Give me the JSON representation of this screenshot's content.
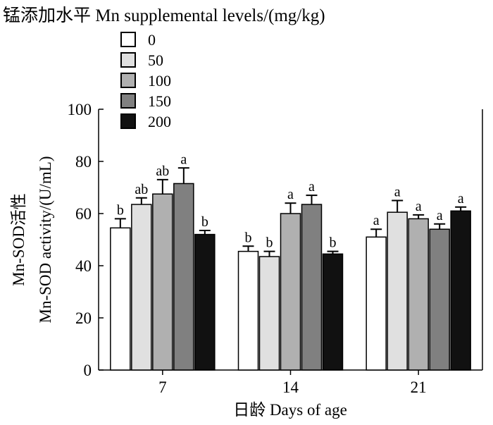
{
  "chart_data": {
    "type": "bar",
    "legend_title": "锰添加水平 Mn supplemental levels/(mg/kg)",
    "legend_position": "top-left",
    "categories": [
      "7",
      "14",
      "21"
    ],
    "xlabel": "日龄  Days of age",
    "ylabel_cn": "Mn-SOD活性",
    "ylabel_en": "Mn-SOD activity/(U/mL)",
    "ylim": [
      0,
      100
    ],
    "yticks": [
      0,
      20,
      40,
      60,
      80,
      100
    ],
    "grid": false,
    "series": [
      {
        "name": "0",
        "color": "#ffffff",
        "values": [
          54.5,
          45.5,
          51.0
        ],
        "errors": [
          3.5,
          2.0,
          3.0
        ],
        "labels": [
          "b",
          "b",
          "a"
        ]
      },
      {
        "name": "50",
        "color": "#e0e0e0",
        "values": [
          63.5,
          43.5,
          60.5
        ],
        "errors": [
          2.5,
          2.0,
          4.5
        ],
        "labels": [
          "ab",
          "b",
          "a"
        ]
      },
      {
        "name": "100",
        "color": "#b0b0b0",
        "values": [
          67.5,
          60.0,
          58.0
        ],
        "errors": [
          5.5,
          4.0,
          1.5
        ],
        "labels": [
          "ab",
          "a",
          "a"
        ]
      },
      {
        "name": "150",
        "color": "#808080",
        "values": [
          71.5,
          63.5,
          54.0
        ],
        "errors": [
          6.0,
          3.5,
          2.0
        ],
        "labels": [
          "a",
          "a",
          "a"
        ]
      },
      {
        "name": "200",
        "color": "#111111",
        "values": [
          52.0,
          44.5,
          61.0
        ],
        "errors": [
          1.5,
          1.0,
          1.5
        ],
        "labels": [
          "b",
          "b",
          "a"
        ]
      }
    ]
  }
}
